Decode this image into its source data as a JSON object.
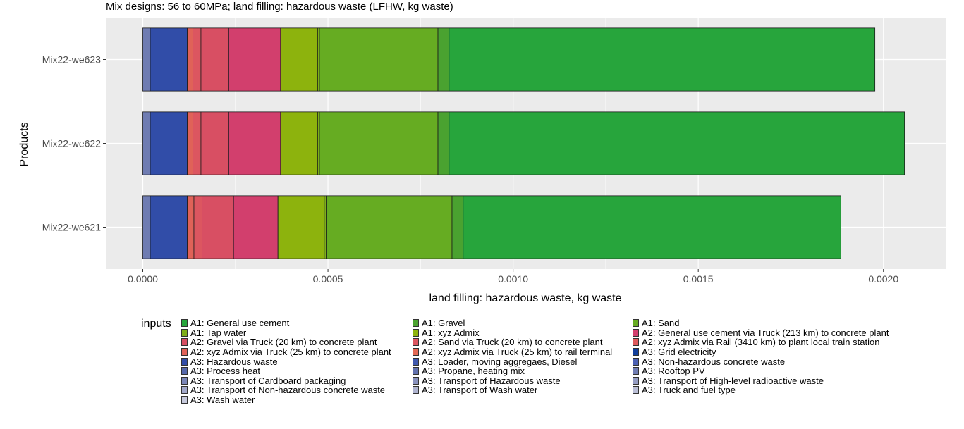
{
  "chart_data": {
    "type": "bar",
    "orientation": "horizontal",
    "stacked": true,
    "title": "Mix designs: 56 to 60MPa; land filling: hazardous waste (LFHW, kg waste)",
    "xlabel": "land filling: hazardous waste, kg waste",
    "ylabel": "Products",
    "xlim": [
      -0.0001,
      0.00217
    ],
    "x_ticks": [
      0,
      0.0005,
      0.001,
      0.0015,
      0.002
    ],
    "x_tick_labels": [
      "0.0000",
      "0.0005",
      "0.0010",
      "0.0015",
      "0.0020"
    ],
    "categories": [
      "Mix22-we623",
      "Mix22-we622",
      "Mix22-we621"
    ],
    "grid": true,
    "legend_title": "inputs",
    "legend_position": "bottom",
    "series": [
      {
        "name": "A1: General use cement",
        "color": "#27a53c",
        "values": [
          0.00115,
          0.00123,
          0.00102
        ]
      },
      {
        "name": "A1: Gravel",
        "color": "#4aa230",
        "values": [
          3e-05,
          3e-05,
          3e-05
        ]
      },
      {
        "name": "A1: Sand",
        "color": "#66ac22",
        "values": [
          0.00032,
          0.00032,
          0.00034
        ]
      },
      {
        "name": "A1: Tap water",
        "color": "#7fae19",
        "values": [
          5e-06,
          5e-06,
          5e-06
        ]
      },
      {
        "name": "A1: xyz Admix",
        "color": "#8db30d",
        "values": [
          0.0001,
          0.0001,
          0.000125
        ]
      },
      {
        "name": "A2: General use cement via Truck (213 km) to concrete plant",
        "color": "#d23f6d",
        "values": [
          0.00014,
          0.00014,
          0.00012
        ]
      },
      {
        "name": "A2: Gravel via Truck (20 km) to concrete plant",
        "color": "#d84f63",
        "values": [
          7.5e-05,
          7.5e-05,
          8.5e-05
        ]
      },
      {
        "name": "A2: Sand via Truck (20 km) to concrete plant",
        "color": "#dc5660",
        "values": [
          2.2e-05,
          2.2e-05,
          2.2e-05
        ]
      },
      {
        "name": "A2: xyz Admix via Rail (3410 km) to plant local train station",
        "color": "#de5a5c",
        "values": [
          0,
          0,
          0
        ]
      },
      {
        "name": "A2: xyz Admix via Truck (25 km) to concrete plant",
        "color": "#e06258",
        "values": [
          1.5e-05,
          1.5e-05,
          1.8e-05
        ]
      },
      {
        "name": "A2: xyz Admix via Truck (25 km) to rail terminal",
        "color": "#e36955",
        "values": [
          0,
          0,
          0
        ]
      },
      {
        "name": "A3: Grid electricity",
        "color": "#123f9c",
        "values": [
          0,
          0,
          0
        ]
      },
      {
        "name": "A3: Hazardous waste",
        "color": "#314da8",
        "values": [
          0.0001,
          0.0001,
          0.0001
        ]
      },
      {
        "name": "A3: Loader, moving aggregaes, Diesel",
        "color": "#3f58ae",
        "values": [
          0,
          0,
          0
        ]
      },
      {
        "name": "A3: Non-hazardous concrete waste",
        "color": "#4b60b2",
        "values": [
          0,
          0,
          0
        ]
      },
      {
        "name": "A3: Process heat",
        "color": "#5668ab",
        "values": [
          0,
          0,
          0
        ]
      },
      {
        "name": "A3: Propane, heating mix",
        "color": "#6171ae",
        "values": [
          0,
          0,
          0
        ]
      },
      {
        "name": "A3: Rooftop PV",
        "color": "#6f7cb2",
        "values": [
          2e-05,
          2e-05,
          2e-05
        ]
      },
      {
        "name": "A3: Transport of Cardboard packaging",
        "color": "#7b86b8",
        "values": [
          0,
          0,
          0
        ]
      },
      {
        "name": "A3: Transport of Hazardous waste",
        "color": "#8891bd",
        "values": [
          0,
          0,
          0
        ]
      },
      {
        "name": "A3: Transport of High-level radioactive waste",
        "color": "#959dc3",
        "values": [
          0,
          0,
          0
        ]
      },
      {
        "name": "A3: Transport of Non-hazardous concrete waste",
        "color": "#a2a8ca",
        "values": [
          0,
          0,
          0
        ]
      },
      {
        "name": "A3: Transport of Wash water",
        "color": "#aeb3cf",
        "values": [
          0,
          0,
          0
        ]
      },
      {
        "name": "A3: Truck and fuel type",
        "color": "#babed6",
        "values": [
          0,
          0,
          0
        ]
      },
      {
        "name": "A3: Wash water",
        "color": "#c6c9dc",
        "values": [
          0,
          0,
          0
        ]
      }
    ]
  }
}
